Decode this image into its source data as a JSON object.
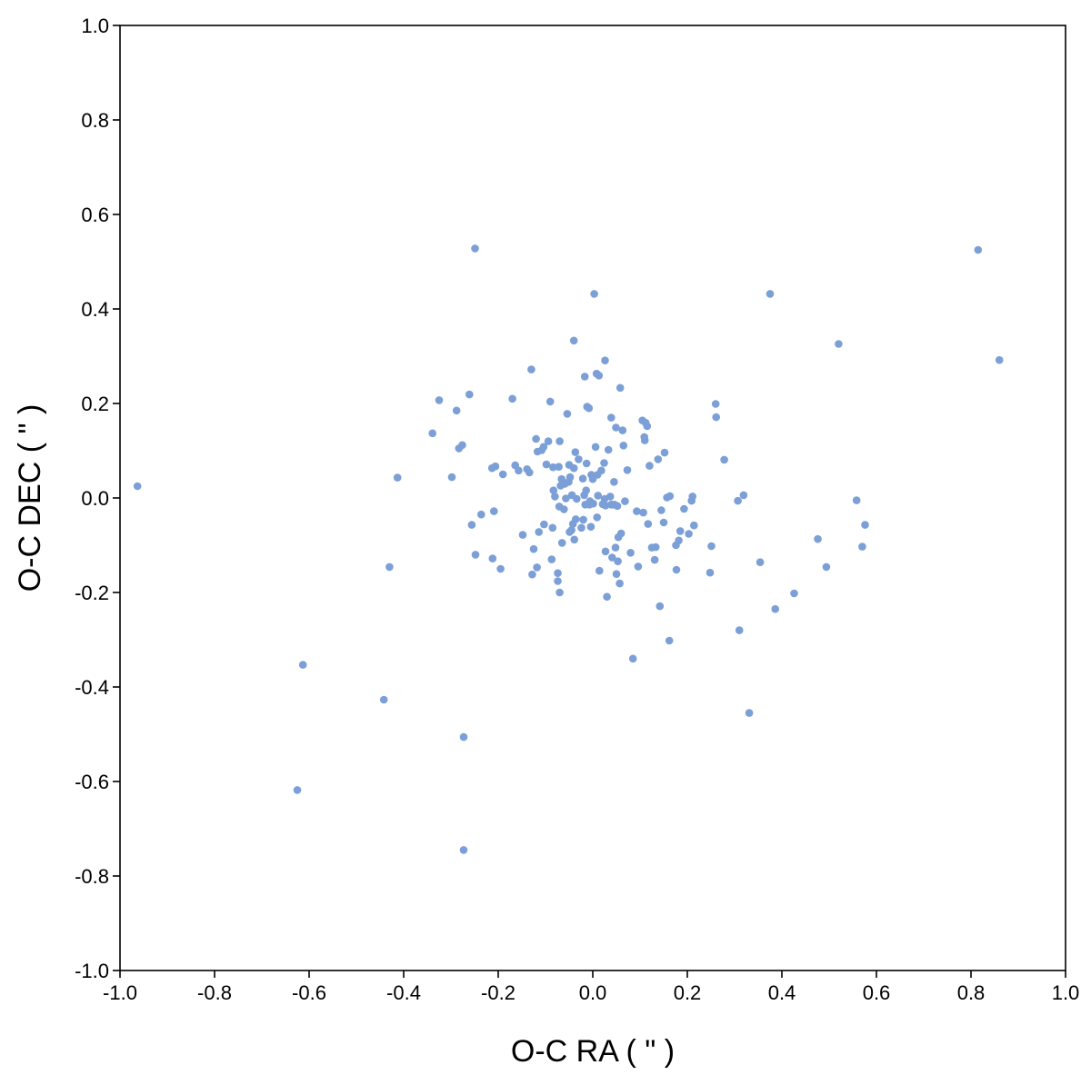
{
  "chart_data": {
    "type": "scatter",
    "xlabel": "O-C RA ( \" )",
    "ylabel": "O-C DEC ( \" )",
    "xlim": [
      -1.0,
      1.0
    ],
    "ylim": [
      -1.0,
      1.0
    ],
    "grid": false,
    "legend": "none",
    "point_color": "#7b9fd6",
    "x_ticks": [
      "-1.0",
      "-0.8",
      "-0.6",
      "-0.4",
      "-0.2",
      "0.0",
      "0.2",
      "0.4",
      "0.6",
      "0.8",
      "1.0"
    ],
    "y_ticks": [
      "1.0",
      "0.8",
      "0.6",
      "0.4",
      "0.2",
      "0.0",
      "-0.2",
      "-0.4",
      "-0.6",
      "-0.8",
      "-1.0"
    ],
    "series": [
      {
        "points": [
          [
            -0.963,
            0.025
          ],
          [
            -0.625,
            -0.618
          ],
          [
            -0.613,
            -0.353
          ],
          [
            -0.442,
            -0.427
          ],
          [
            -0.43,
            -0.146
          ],
          [
            -0.413,
            0.043
          ],
          [
            -0.339,
            0.137
          ],
          [
            -0.325,
            0.207
          ],
          [
            -0.298,
            0.044
          ],
          [
            -0.288,
            0.185
          ],
          [
            -0.283,
            0.105
          ],
          [
            -0.276,
            0.112
          ],
          [
            -0.273,
            -0.506
          ],
          [
            -0.273,
            -0.745
          ],
          [
            -0.261,
            0.219
          ],
          [
            -0.256,
            -0.057
          ],
          [
            -0.249,
            0.528
          ],
          [
            -0.248,
            -0.12
          ],
          [
            -0.236,
            -0.035
          ],
          [
            -0.213,
            0.063
          ],
          [
            -0.212,
            -0.128
          ],
          [
            -0.209,
            -0.028
          ],
          [
            -0.206,
            0.067
          ],
          [
            -0.195,
            -0.15
          ],
          [
            -0.19,
            0.05
          ],
          [
            -0.17,
            0.21
          ],
          [
            -0.164,
            0.069
          ],
          [
            -0.157,
            0.058
          ],
          [
            -0.148,
            -0.078
          ],
          [
            -0.139,
            0.061
          ],
          [
            -0.134,
            0.054
          ],
          [
            -0.13,
            0.272
          ],
          [
            -0.128,
            -0.162
          ],
          [
            -0.125,
            -0.108
          ],
          [
            -0.12,
            0.125
          ],
          [
            -0.118,
            -0.147
          ],
          [
            -0.117,
            0.098
          ],
          [
            -0.114,
            -0.072
          ],
          [
            -0.108,
            0.101
          ],
          [
            -0.104,
            0.108
          ],
          [
            -0.103,
            -0.056
          ],
          [
            -0.098,
            0.071
          ],
          [
            -0.094,
            0.12
          ],
          [
            -0.09,
            0.204
          ],
          [
            -0.087,
            -0.13
          ],
          [
            -0.085,
            -0.063
          ],
          [
            -0.084,
            0.065
          ],
          [
            -0.083,
            0.016
          ],
          [
            -0.08,
            0.003
          ],
          [
            -0.074,
            -0.176
          ],
          [
            -0.074,
            -0.159
          ],
          [
            -0.072,
            0.066
          ],
          [
            -0.071,
            -0.018
          ],
          [
            -0.07,
            -0.2
          ],
          [
            -0.07,
            0.12
          ],
          [
            -0.068,
            0.026
          ],
          [
            -0.066,
            0.04
          ],
          [
            -0.065,
            -0.095
          ],
          [
            -0.061,
            -0.024
          ],
          [
            -0.059,
            0.03
          ],
          [
            -0.057,
            -0.001
          ],
          [
            -0.054,
            0.178
          ],
          [
            -0.051,
            0.034
          ],
          [
            -0.05,
            0.07
          ],
          [
            -0.049,
            -0.072
          ],
          [
            -0.048,
            0.044
          ],
          [
            -0.045,
            -0.068
          ],
          [
            -0.044,
            0.006
          ],
          [
            -0.042,
            -0.055
          ],
          [
            -0.04,
            0.333
          ],
          [
            -0.04,
            0.063
          ],
          [
            -0.039,
            -0.088
          ],
          [
            -0.037,
            0.097
          ],
          [
            -0.036,
            -0.045
          ],
          [
            -0.034,
            -0.002
          ],
          [
            -0.03,
            0.082
          ],
          [
            -0.024,
            -0.063
          ],
          [
            -0.021,
            0.041
          ],
          [
            -0.02,
            -0.046
          ],
          [
            -0.018,
            0.006
          ],
          [
            -0.017,
            0.257
          ],
          [
            -0.016,
            -0.014
          ],
          [
            -0.014,
            0.016
          ],
          [
            -0.013,
            0.073
          ],
          [
            -0.012,
            0.193
          ],
          [
            -0.008,
            0.19
          ],
          [
            -0.007,
            -0.014
          ],
          [
            -0.006,
            -0.007
          ],
          [
            -0.004,
            -0.061
          ],
          [
            -0.003,
            0.049
          ],
          [
            0.0,
            0.04
          ],
          [
            0.001,
            -0.012
          ],
          [
            0.003,
            0.432
          ],
          [
            0.006,
            0.108
          ],
          [
            0.008,
            0.263
          ],
          [
            0.009,
            -0.041
          ],
          [
            0.01,
            0.049
          ],
          [
            0.011,
            0.005
          ],
          [
            0.013,
            0.259
          ],
          [
            0.014,
            -0.154
          ],
          [
            0.018,
            0.058
          ],
          [
            0.021,
            -0.013
          ],
          [
            0.024,
            0.074
          ],
          [
            0.025,
            -0.002
          ],
          [
            0.026,
            0.291
          ],
          [
            0.027,
            -0.016
          ],
          [
            0.027,
            -0.113
          ],
          [
            0.03,
            -0.209
          ],
          [
            0.033,
            0.102
          ],
          [
            0.037,
            0.003
          ],
          [
            0.039,
            -0.014
          ],
          [
            0.039,
            0.17
          ],
          [
            0.041,
            -0.126
          ],
          [
            0.042,
            -0.014
          ],
          [
            0.045,
            0.034
          ],
          [
            0.046,
            -0.014
          ],
          [
            0.048,
            -0.105
          ],
          [
            0.049,
            0.149
          ],
          [
            0.05,
            -0.161
          ],
          [
            0.052,
            -0.017
          ],
          [
            0.053,
            -0.134
          ],
          [
            0.054,
            -0.083
          ],
          [
            0.057,
            -0.181
          ],
          [
            0.058,
            0.233
          ],
          [
            0.06,
            -0.075
          ],
          [
            0.063,
            0.143
          ],
          [
            0.065,
            0.111
          ],
          [
            0.068,
            -0.007
          ],
          [
            0.073,
            0.059
          ],
          [
            0.08,
            -0.116
          ],
          [
            0.085,
            -0.34
          ],
          [
            0.093,
            -0.028
          ],
          [
            0.096,
            -0.145
          ],
          [
            0.105,
            0.164
          ],
          [
            0.107,
            -0.031
          ],
          [
            0.109,
            0.129
          ],
          [
            0.11,
            0.122
          ],
          [
            0.112,
            0.159
          ],
          [
            0.115,
            0.152
          ],
          [
            0.117,
            -0.055
          ],
          [
            0.12,
            0.068
          ],
          [
            0.125,
            -0.105
          ],
          [
            0.131,
            -0.131
          ],
          [
            0.133,
            -0.104
          ],
          [
            0.138,
            0.082
          ],
          [
            0.142,
            -0.229
          ],
          [
            0.145,
            -0.026
          ],
          [
            0.15,
            -0.052
          ],
          [
            0.152,
            0.096
          ],
          [
            0.157,
            0.001
          ],
          [
            0.162,
            -0.302
          ],
          [
            0.163,
            0.004
          ],
          [
            0.176,
            -0.1
          ],
          [
            0.177,
            -0.152
          ],
          [
            0.182,
            -0.09
          ],
          [
            0.185,
            -0.07
          ],
          [
            0.193,
            -0.023
          ],
          [
            0.203,
            -0.076
          ],
          [
            0.209,
            -0.006
          ],
          [
            0.211,
            0.003
          ],
          [
            0.214,
            -0.058
          ],
          [
            0.248,
            -0.158
          ],
          [
            0.251,
            -0.102
          ],
          [
            0.26,
            0.199
          ],
          [
            0.261,
            0.171
          ],
          [
            0.278,
            0.081
          ],
          [
            0.307,
            -0.006
          ],
          [
            0.31,
            -0.28
          ],
          [
            0.319,
            0.006
          ],
          [
            0.331,
            -0.455
          ],
          [
            0.354,
            -0.136
          ],
          [
            0.375,
            0.432
          ],
          [
            0.386,
            -0.235
          ],
          [
            0.426,
            -0.202
          ],
          [
            0.476,
            -0.087
          ],
          [
            0.494,
            -0.146
          ],
          [
            0.52,
            0.326
          ],
          [
            0.558,
            -0.005
          ],
          [
            0.57,
            -0.103
          ],
          [
            0.576,
            -0.057
          ],
          [
            0.815,
            0.525
          ],
          [
            0.86,
            0.292
          ]
        ]
      }
    ]
  }
}
